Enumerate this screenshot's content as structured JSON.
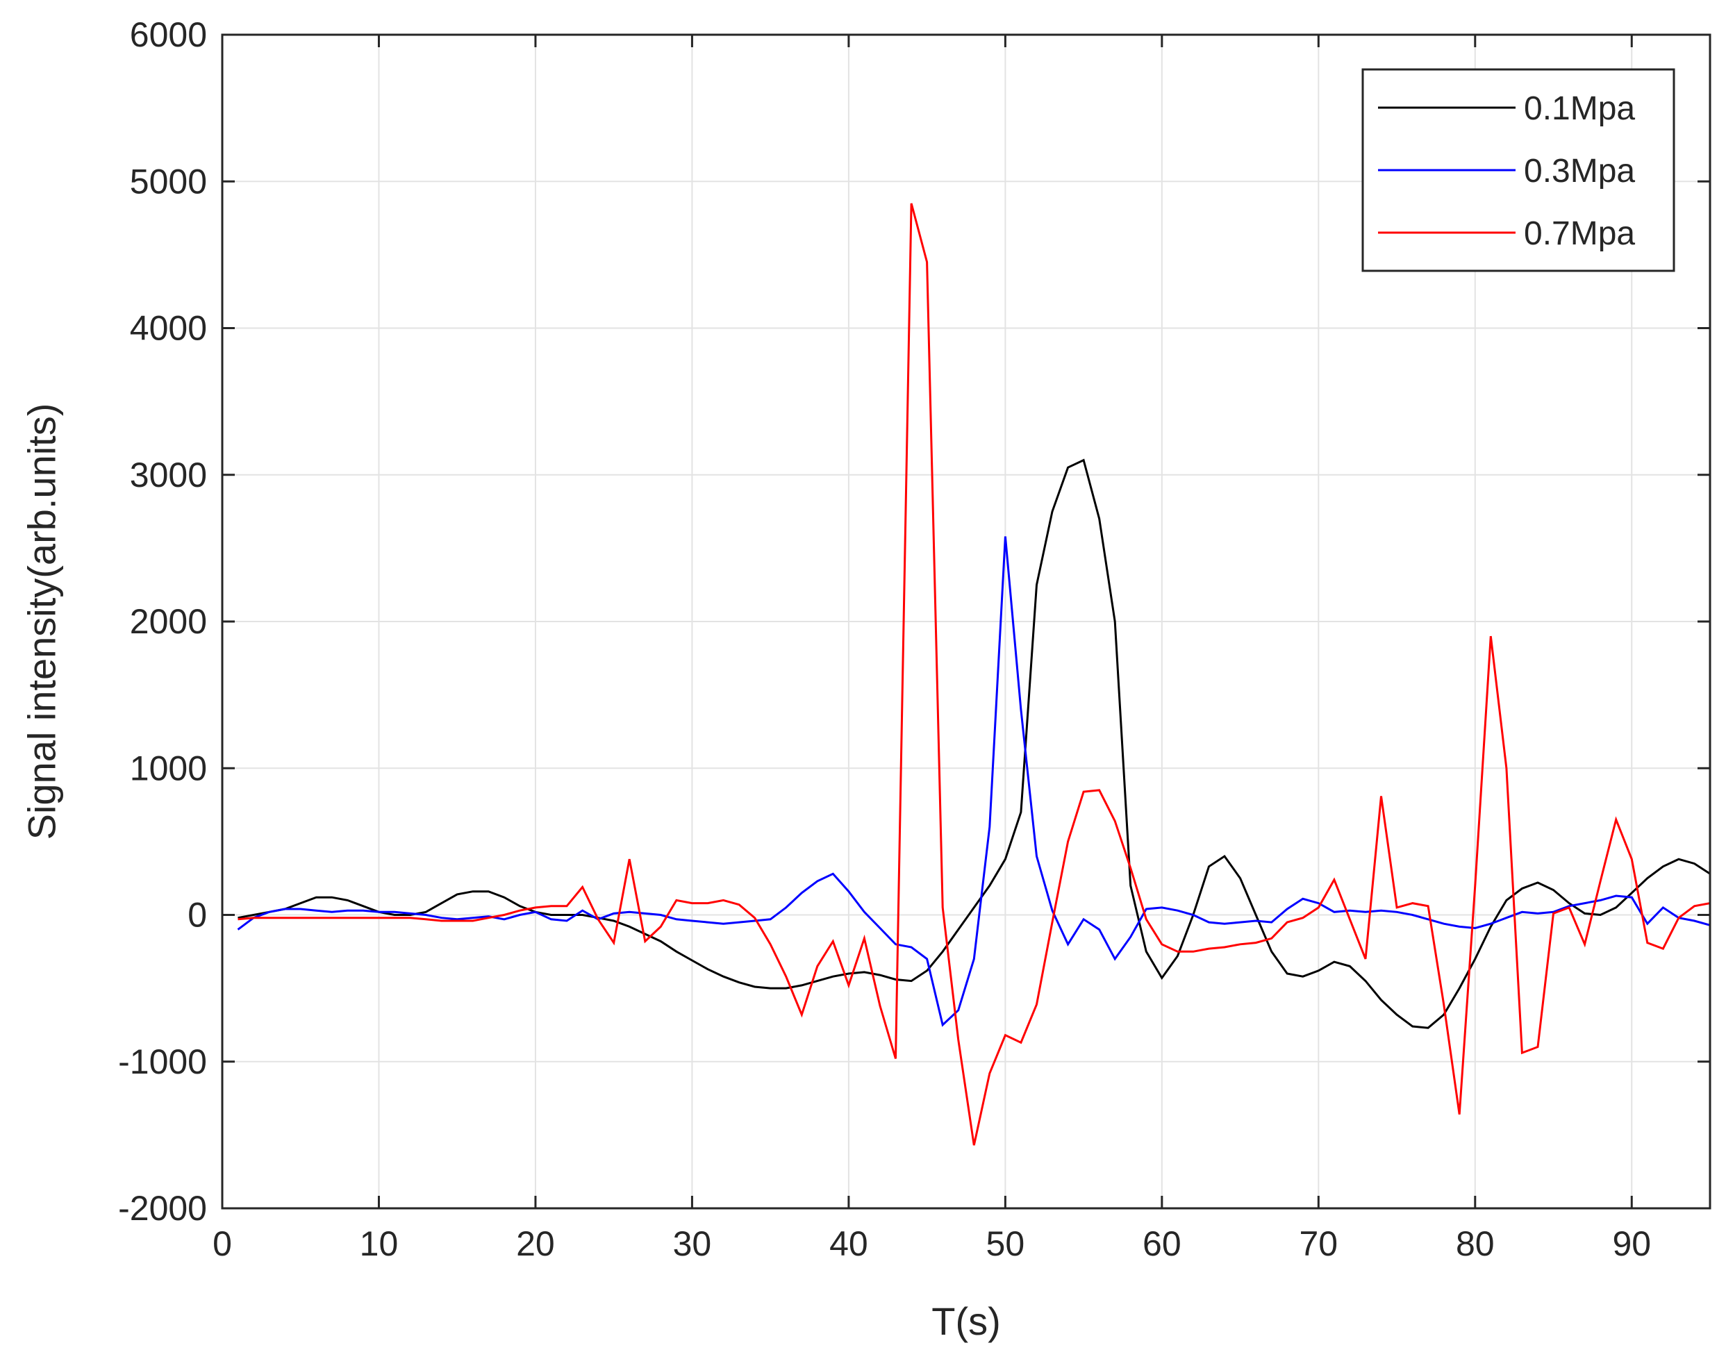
{
  "chart_data": {
    "type": "line",
    "title": "",
    "xlabel": "T(s)",
    "ylabel": "Signal intensity(arb.units)",
    "xlim": [
      0,
      95
    ],
    "ylim": [
      -2000,
      6000
    ],
    "xticks": [
      0,
      10,
      20,
      30,
      40,
      50,
      60,
      70,
      80,
      90
    ],
    "yticks": [
      -2000,
      -1000,
      0,
      1000,
      2000,
      3000,
      4000,
      5000,
      6000
    ],
    "grid": true,
    "legend_position": "top-right",
    "series": [
      {
        "name": "0.1Mpa",
        "color": "#000000",
        "points": [
          [
            1,
            -20
          ],
          [
            2,
            0
          ],
          [
            3,
            20
          ],
          [
            4,
            40
          ],
          [
            5,
            80
          ],
          [
            6,
            120
          ],
          [
            7,
            120
          ],
          [
            8,
            100
          ],
          [
            9,
            60
          ],
          [
            10,
            20
          ],
          [
            11,
            0
          ],
          [
            12,
            0
          ],
          [
            13,
            20
          ],
          [
            14,
            80
          ],
          [
            15,
            140
          ],
          [
            16,
            160
          ],
          [
            17,
            160
          ],
          [
            18,
            120
          ],
          [
            19,
            60
          ],
          [
            20,
            20
          ],
          [
            21,
            0
          ],
          [
            22,
            0
          ],
          [
            23,
            0
          ],
          [
            24,
            -20
          ],
          [
            25,
            -40
          ],
          [
            26,
            -80
          ],
          [
            27,
            -130
          ],
          [
            28,
            -180
          ],
          [
            29,
            -250
          ],
          [
            30,
            -310
          ],
          [
            31,
            -370
          ],
          [
            32,
            -420
          ],
          [
            33,
            -460
          ],
          [
            34,
            -490
          ],
          [
            35,
            -500
          ],
          [
            36,
            -500
          ],
          [
            37,
            -480
          ],
          [
            38,
            -450
          ],
          [
            39,
            -420
          ],
          [
            40,
            -400
          ],
          [
            41,
            -390
          ],
          [
            42,
            -410
          ],
          [
            43,
            -440
          ],
          [
            44,
            -450
          ],
          [
            45,
            -380
          ],
          [
            46,
            -250
          ],
          [
            47,
            -100
          ],
          [
            48,
            50
          ],
          [
            49,
            200
          ],
          [
            50,
            380
          ],
          [
            51,
            700
          ],
          [
            52,
            2250
          ],
          [
            53,
            2750
          ],
          [
            54,
            3050
          ],
          [
            55,
            3100
          ],
          [
            56,
            2700
          ],
          [
            57,
            2000
          ],
          [
            58,
            200
          ],
          [
            59,
            -250
          ],
          [
            60,
            -430
          ],
          [
            61,
            -280
          ],
          [
            62,
            0
          ],
          [
            63,
            330
          ],
          [
            64,
            400
          ],
          [
            65,
            250
          ],
          [
            66,
            0
          ],
          [
            67,
            -250
          ],
          [
            68,
            -400
          ],
          [
            69,
            -420
          ],
          [
            70,
            -380
          ],
          [
            71,
            -320
          ],
          [
            72,
            -350
          ],
          [
            73,
            -450
          ],
          [
            74,
            -580
          ],
          [
            75,
            -680
          ],
          [
            76,
            -760
          ],
          [
            77,
            -770
          ],
          [
            78,
            -680
          ],
          [
            79,
            -500
          ],
          [
            80,
            -300
          ],
          [
            81,
            -80
          ],
          [
            82,
            100
          ],
          [
            83,
            180
          ],
          [
            84,
            220
          ],
          [
            85,
            170
          ],
          [
            86,
            80
          ],
          [
            87,
            10
          ],
          [
            88,
            0
          ],
          [
            89,
            50
          ],
          [
            90,
            150
          ],
          [
            91,
            250
          ],
          [
            92,
            330
          ],
          [
            93,
            380
          ],
          [
            94,
            350
          ],
          [
            95,
            280
          ]
        ]
      },
      {
        "name": "0.3Mpa",
        "color": "#0000ff",
        "points": [
          [
            1,
            -100
          ],
          [
            2,
            -20
          ],
          [
            3,
            20
          ],
          [
            4,
            40
          ],
          [
            5,
            40
          ],
          [
            6,
            30
          ],
          [
            7,
            20
          ],
          [
            8,
            30
          ],
          [
            9,
            30
          ],
          [
            10,
            20
          ],
          [
            11,
            20
          ],
          [
            12,
            10
          ],
          [
            13,
            0
          ],
          [
            14,
            -20
          ],
          [
            15,
            -30
          ],
          [
            16,
            -20
          ],
          [
            17,
            -10
          ],
          [
            18,
            -30
          ],
          [
            19,
            0
          ],
          [
            20,
            20
          ],
          [
            21,
            -30
          ],
          [
            22,
            -40
          ],
          [
            23,
            30
          ],
          [
            24,
            -30
          ],
          [
            25,
            10
          ],
          [
            26,
            20
          ],
          [
            27,
            10
          ],
          [
            28,
            0
          ],
          [
            29,
            -30
          ],
          [
            30,
            -40
          ],
          [
            31,
            -50
          ],
          [
            32,
            -60
          ],
          [
            33,
            -50
          ],
          [
            34,
            -40
          ],
          [
            35,
            -30
          ],
          [
            36,
            50
          ],
          [
            37,
            150
          ],
          [
            38,
            230
          ],
          [
            39,
            280
          ],
          [
            40,
            160
          ],
          [
            41,
            20
          ],
          [
            42,
            -90
          ],
          [
            43,
            -200
          ],
          [
            44,
            -220
          ],
          [
            45,
            -300
          ],
          [
            46,
            -750
          ],
          [
            47,
            -650
          ],
          [
            48,
            -300
          ],
          [
            49,
            600
          ],
          [
            50,
            2580
          ],
          [
            51,
            1400
          ],
          [
            52,
            400
          ],
          [
            53,
            30
          ],
          [
            54,
            -200
          ],
          [
            55,
            -30
          ],
          [
            56,
            -100
          ],
          [
            57,
            -300
          ],
          [
            58,
            -150
          ],
          [
            59,
            40
          ],
          [
            60,
            50
          ],
          [
            61,
            30
          ],
          [
            62,
            0
          ],
          [
            63,
            -50
          ],
          [
            64,
            -60
          ],
          [
            65,
            -50
          ],
          [
            66,
            -40
          ],
          [
            67,
            -50
          ],
          [
            68,
            40
          ],
          [
            69,
            110
          ],
          [
            70,
            80
          ],
          [
            71,
            20
          ],
          [
            72,
            30
          ],
          [
            73,
            20
          ],
          [
            74,
            30
          ],
          [
            75,
            20
          ],
          [
            76,
            0
          ],
          [
            77,
            -30
          ],
          [
            78,
            -60
          ],
          [
            79,
            -80
          ],
          [
            80,
            -90
          ],
          [
            81,
            -60
          ],
          [
            82,
            -20
          ],
          [
            83,
            20
          ],
          [
            84,
            10
          ],
          [
            85,
            20
          ],
          [
            86,
            60
          ],
          [
            87,
            80
          ],
          [
            88,
            100
          ],
          [
            89,
            130
          ],
          [
            90,
            120
          ],
          [
            91,
            -60
          ],
          [
            92,
            50
          ],
          [
            93,
            -20
          ],
          [
            94,
            -40
          ],
          [
            95,
            -70
          ]
        ]
      },
      {
        "name": "0.7Mpa",
        "color": "#ff0000",
        "points": [
          [
            1,
            -30
          ],
          [
            2,
            -20
          ],
          [
            3,
            -20
          ],
          [
            4,
            -20
          ],
          [
            5,
            -20
          ],
          [
            6,
            -20
          ],
          [
            7,
            -20
          ],
          [
            8,
            -20
          ],
          [
            9,
            -20
          ],
          [
            10,
            -20
          ],
          [
            11,
            -20
          ],
          [
            12,
            -20
          ],
          [
            13,
            -30
          ],
          [
            14,
            -40
          ],
          [
            15,
            -40
          ],
          [
            16,
            -40
          ],
          [
            17,
            -20
          ],
          [
            18,
            0
          ],
          [
            19,
            30
          ],
          [
            20,
            50
          ],
          [
            21,
            60
          ],
          [
            22,
            60
          ],
          [
            23,
            190
          ],
          [
            24,
            -30
          ],
          [
            25,
            -190
          ],
          [
            26,
            380
          ],
          [
            27,
            -180
          ],
          [
            28,
            -80
          ],
          [
            29,
            100
          ],
          [
            30,
            80
          ],
          [
            31,
            80
          ],
          [
            32,
            100
          ],
          [
            33,
            70
          ],
          [
            34,
            -20
          ],
          [
            35,
            -200
          ],
          [
            36,
            -420
          ],
          [
            37,
            -680
          ],
          [
            38,
            -350
          ],
          [
            39,
            -180
          ],
          [
            40,
            -480
          ],
          [
            41,
            -160
          ],
          [
            42,
            -620
          ],
          [
            43,
            -980
          ],
          [
            44,
            4850
          ],
          [
            45,
            4450
          ],
          [
            46,
            50
          ],
          [
            47,
            -850
          ],
          [
            48,
            -1570
          ],
          [
            49,
            -1080
          ],
          [
            50,
            -820
          ],
          [
            51,
            -870
          ],
          [
            52,
            -610
          ],
          [
            53,
            -50
          ],
          [
            54,
            500
          ],
          [
            55,
            840
          ],
          [
            56,
            850
          ],
          [
            57,
            640
          ],
          [
            58,
            320
          ],
          [
            59,
            -30
          ],
          [
            60,
            -200
          ],
          [
            61,
            -250
          ],
          [
            62,
            -250
          ],
          [
            63,
            -230
          ],
          [
            64,
            -220
          ],
          [
            65,
            -200
          ],
          [
            66,
            -190
          ],
          [
            67,
            -160
          ],
          [
            68,
            -50
          ],
          [
            69,
            -20
          ],
          [
            70,
            50
          ],
          [
            71,
            240
          ],
          [
            72,
            -30
          ],
          [
            73,
            -300
          ],
          [
            74,
            810
          ],
          [
            75,
            50
          ],
          [
            76,
            80
          ],
          [
            77,
            60
          ],
          [
            78,
            -610
          ],
          [
            79,
            -1360
          ],
          [
            80,
            200
          ],
          [
            81,
            1900
          ],
          [
            82,
            1000
          ],
          [
            83,
            -940
          ],
          [
            84,
            -900
          ],
          [
            85,
            10
          ],
          [
            86,
            50
          ],
          [
            87,
            -200
          ],
          [
            88,
            230
          ],
          [
            89,
            650
          ],
          [
            90,
            380
          ],
          [
            91,
            -190
          ],
          [
            92,
            -230
          ],
          [
            93,
            -20
          ],
          [
            94,
            60
          ],
          [
            95,
            80
          ]
        ]
      }
    ]
  }
}
